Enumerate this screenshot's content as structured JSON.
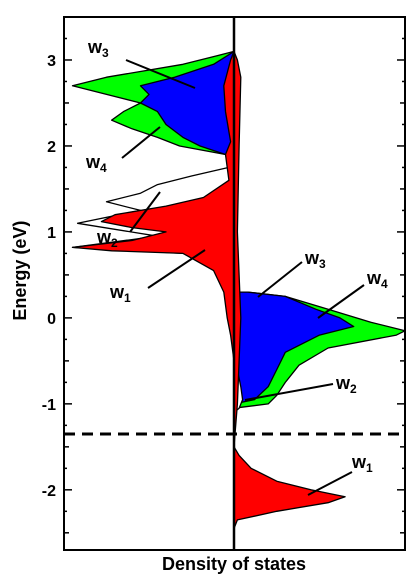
{
  "chart_data": {
    "type": "area",
    "title": "",
    "xlabel": "Density of states",
    "ylabel": "Energy (eV)",
    "ylim": [
      -2.7,
      3.5
    ],
    "yticks": [
      "-2",
      "-1",
      "0",
      "1",
      "2",
      "3"
    ],
    "xticks_shown": false,
    "reference_line": {
      "style": "dashed",
      "y": -1.35
    },
    "center_line_x": 0,
    "spin_up_side": "left",
    "spin_down_side": "right",
    "series": [
      {
        "name": "w1",
        "color": "#ff0000",
        "up": [
          [
            -1.0,
            0
          ],
          [
            -0.5,
            0
          ],
          [
            -0.2,
            0.02
          ],
          [
            0.0,
            0.04
          ],
          [
            0.3,
            0.06
          ],
          [
            0.55,
            0.12
          ],
          [
            0.75,
            0.3
          ],
          [
            0.78,
            0.72
          ],
          [
            0.82,
            0.95
          ],
          [
            0.9,
            0.6
          ],
          [
            1.0,
            0.4
          ],
          [
            1.05,
            0.6
          ],
          [
            1.12,
            0.78
          ],
          [
            1.2,
            0.7
          ],
          [
            1.3,
            0.4
          ],
          [
            1.4,
            0.18
          ],
          [
            1.6,
            0.03
          ],
          [
            1.9,
            0.05
          ],
          [
            2.05,
            0.02
          ],
          [
            2.4,
            0.05
          ],
          [
            2.7,
            0.06
          ],
          [
            3.0,
            0.02
          ],
          [
            3.1,
            0
          ]
        ],
        "down": [
          [
            -2.45,
            0
          ],
          [
            -2.35,
            0.02
          ],
          [
            -2.25,
            0.25
          ],
          [
            -2.15,
            0.55
          ],
          [
            -2.08,
            0.65
          ],
          [
            -2.0,
            0.45
          ],
          [
            -1.9,
            0.25
          ],
          [
            -1.75,
            0.1
          ],
          [
            -1.6,
            0.03
          ],
          [
            -1.5,
            0
          ],
          [
            -1.0,
            0.02
          ],
          [
            -0.5,
            0.03
          ],
          [
            0.0,
            0.04
          ],
          [
            0.5,
            0.03
          ],
          [
            1.0,
            0.02
          ],
          [
            2.0,
            0.03
          ],
          [
            2.8,
            0.04
          ],
          [
            3.0,
            0.02
          ],
          [
            3.1,
            0
          ]
        ]
      },
      {
        "name": "w2",
        "color": "#ffffff",
        "up": [
          [
            0.75,
            0.3
          ],
          [
            0.82,
            0.95
          ],
          [
            0.95,
            0.45
          ],
          [
            1.1,
            0.92
          ],
          [
            1.25,
            0.55
          ],
          [
            1.35,
            0.75
          ],
          [
            1.45,
            0.55
          ],
          [
            1.55,
            0.45
          ],
          [
            1.65,
            0.25
          ],
          [
            1.75,
            0.03
          ],
          [
            1.9,
            0.05
          ]
        ],
        "down": [
          [
            -1.1,
            0
          ],
          [
            -1.05,
            0.03
          ],
          [
            -0.95,
            0.05
          ],
          [
            -0.8,
            0.04
          ],
          [
            -0.6,
            0.02
          ],
          [
            -0.3,
            0.01
          ],
          [
            0.0,
            0.0
          ]
        ]
      },
      {
        "name": "w3",
        "color": "#0000ff",
        "up": [
          [
            1.9,
            0.05
          ],
          [
            2.0,
            0.2
          ],
          [
            2.1,
            0.3
          ],
          [
            2.25,
            0.4
          ],
          [
            2.4,
            0.45
          ],
          [
            2.5,
            0.55
          ],
          [
            2.6,
            0.5
          ],
          [
            2.7,
            0.55
          ],
          [
            2.8,
            0.35
          ],
          [
            2.95,
            0.12
          ],
          [
            3.1,
            0
          ]
        ],
        "down": [
          [
            -1.0,
            0
          ],
          [
            -0.95,
            0.12
          ],
          [
            -0.8,
            0.2
          ],
          [
            -0.6,
            0.25
          ],
          [
            -0.4,
            0.3
          ],
          [
            -0.2,
            0.5
          ],
          [
            -0.1,
            0.7
          ],
          [
            0.0,
            0.62
          ],
          [
            0.1,
            0.48
          ],
          [
            0.25,
            0.3
          ],
          [
            0.3,
            0.08
          ]
        ]
      },
      {
        "name": "w4",
        "color": "#00ff00",
        "up": [
          [
            1.9,
            0.05
          ],
          [
            2.0,
            0.32
          ],
          [
            2.1,
            0.45
          ],
          [
            2.2,
            0.6
          ],
          [
            2.3,
            0.72
          ],
          [
            2.4,
            0.65
          ],
          [
            2.5,
            0.55
          ],
          [
            2.6,
            0.75
          ],
          [
            2.7,
            0.95
          ],
          [
            2.8,
            0.75
          ],
          [
            2.95,
            0.3
          ],
          [
            3.05,
            0.1
          ],
          [
            3.1,
            0
          ]
        ],
        "down": [
          [
            -1.05,
            0
          ],
          [
            -1.0,
            0.2
          ],
          [
            -0.9,
            0.25
          ],
          [
            -0.75,
            0.3
          ],
          [
            -0.55,
            0.38
          ],
          [
            -0.35,
            0.55
          ],
          [
            -0.2,
            0.95
          ],
          [
            -0.15,
            1.0
          ],
          [
            -0.05,
            0.8
          ],
          [
            0.1,
            0.55
          ],
          [
            0.25,
            0.3
          ],
          [
            0.3,
            0.08
          ]
        ]
      }
    ]
  },
  "annotations": [
    {
      "main": "w",
      "sub": "3"
    },
    {
      "main": "w",
      "sub": "4"
    },
    {
      "main": "w",
      "sub": "2"
    },
    {
      "main": "w",
      "sub": "1"
    },
    {
      "main": "w",
      "sub": "3"
    },
    {
      "main": "w",
      "sub": "4"
    },
    {
      "main": "w",
      "sub": "2"
    },
    {
      "main": "w",
      "sub": "1"
    }
  ]
}
